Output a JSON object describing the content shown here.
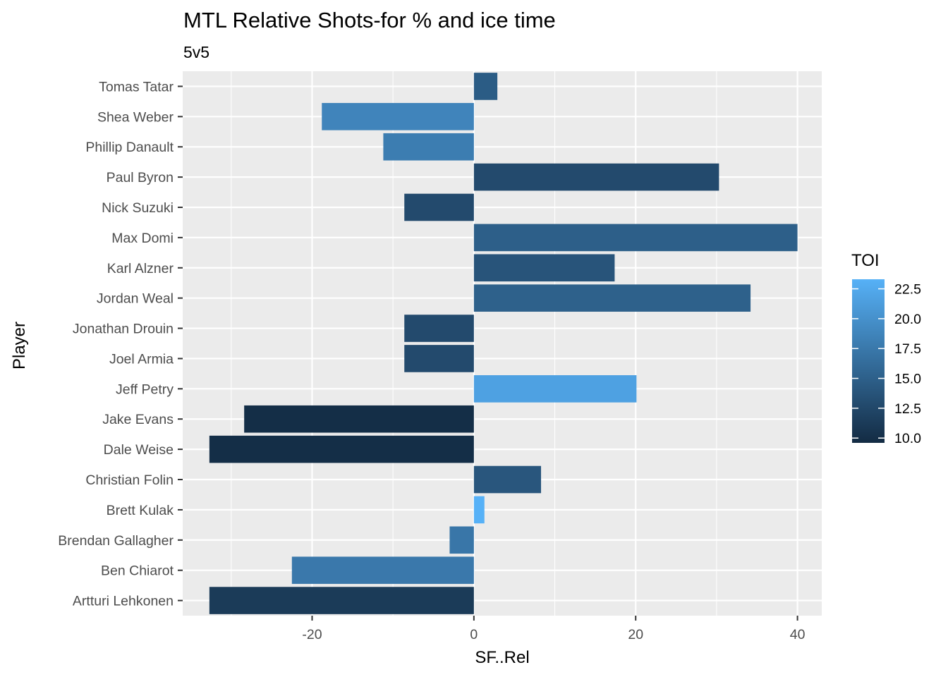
{
  "chart_data": {
    "type": "bar",
    "orientation": "horizontal",
    "title": "MTL Relative Shots-for % and ice time",
    "subtitle": "5v5",
    "xlabel": "SF..Rel",
    "ylabel": "Player",
    "xlim": [
      -36.0,
      43.0
    ],
    "x_ticks": [
      -20,
      0,
      20,
      40
    ],
    "x_tick_labels": [
      "-20",
      "0",
      "20",
      "40"
    ],
    "grid": true,
    "legend_position": "right",
    "color_scale": {
      "title": "TOI",
      "low_color": "#132B43",
      "high_color": "#56B1F7",
      "range": [
        9.6,
        23.3
      ],
      "ticks": [
        10.0,
        12.5,
        15.0,
        17.5,
        20.0,
        22.5
      ],
      "tick_labels": [
        "10.0",
        "12.5",
        "15.0",
        "17.5",
        "20.0",
        "22.5"
      ]
    },
    "categories": [
      "Tomas Tatar",
      "Shea Weber",
      "Phillip Danault",
      "Paul Byron",
      "Nick Suzuki",
      "Max Domi",
      "Karl Alzner",
      "Jordan Weal",
      "Jonathan Drouin",
      "Joel Armia",
      "Jeff Petry",
      "Jake Evans",
      "Dale Weise",
      "Christian Folin",
      "Brett Kulak",
      "Brendan Gallagher",
      "Ben Chiarot",
      "Artturi Lehkonen"
    ],
    "values": [
      2.9,
      -18.8,
      -11.2,
      30.3,
      -8.6,
      40.0,
      17.4,
      34.2,
      -8.6,
      -8.6,
      20.1,
      -28.4,
      -32.7,
      8.3,
      1.3,
      -3.0,
      -22.5,
      -32.7
    ],
    "toi": [
      14.6,
      18.7,
      18.0,
      12.8,
      12.8,
      14.9,
      13.8,
      15.1,
      12.8,
      12.8,
      21.7,
      9.9,
      9.9,
      14.0,
      23.3,
      17.3,
      17.5,
      11.2
    ]
  }
}
